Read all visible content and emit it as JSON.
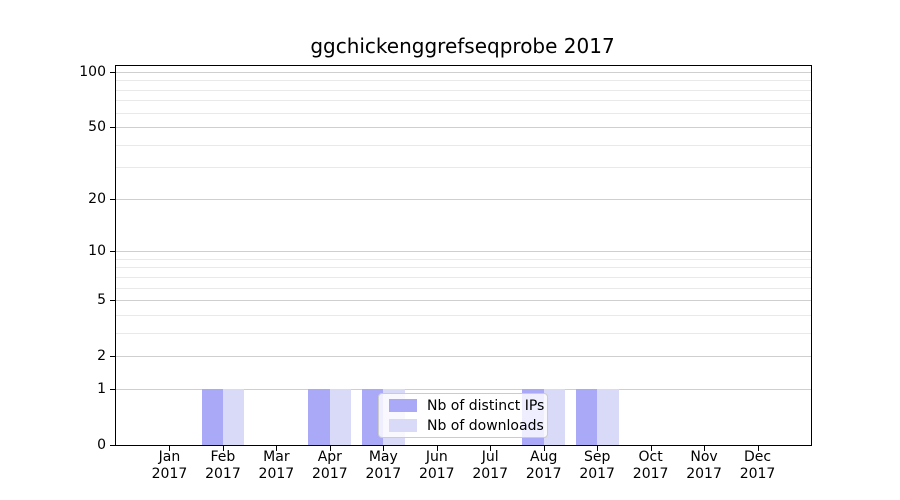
{
  "title": "ggchickenggrefseqprobe 2017",
  "colors": {
    "distinct_ips_bar": "#a9a9f8",
    "downloads_bar": "#d9d9f8",
    "grid_major": "#cfcfcf",
    "grid_minor": "#e9e9e9",
    "axis_frame": "#000000",
    "legend_border": "#cccccc"
  },
  "legend": {
    "items": [
      {
        "label": "Nb of distinct IPs",
        "color": "#a9a9f8"
      },
      {
        "label": "Nb of downloads",
        "color": "#d9d9f8"
      }
    ]
  },
  "chart_data": {
    "type": "bar",
    "title": "ggchickenggrefseqprobe 2017",
    "categories": [
      "Jan",
      "Feb",
      "Mar",
      "Apr",
      "May",
      "Jun",
      "Jul",
      "Aug",
      "Sep",
      "Oct",
      "Nov",
      "Dec"
    ],
    "year": "2017",
    "series": [
      {
        "name": "Nb of distinct IPs",
        "color": "#a9a9f8",
        "values": [
          0,
          1,
          0,
          1,
          1,
          0,
          0,
          1,
          1,
          0,
          0,
          0
        ]
      },
      {
        "name": "Nb of downloads",
        "color": "#d9d9f8",
        "values": [
          0,
          1,
          0,
          1,
          1,
          0,
          0,
          1,
          1,
          0,
          0,
          0
        ]
      }
    ],
    "xlabel": "",
    "ylabel": "",
    "y_scale": "log1p",
    "ylim": [
      0,
      107.7
    ],
    "y_ticks": [
      0,
      1,
      2,
      5,
      10,
      20,
      50,
      100
    ],
    "y_minor_gridlines": [
      3,
      4,
      6,
      7,
      8,
      9,
      30,
      40,
      60,
      70,
      80,
      90
    ],
    "grid": true,
    "bar_width_fraction": 0.4,
    "legend_position": "lower center inside"
  }
}
